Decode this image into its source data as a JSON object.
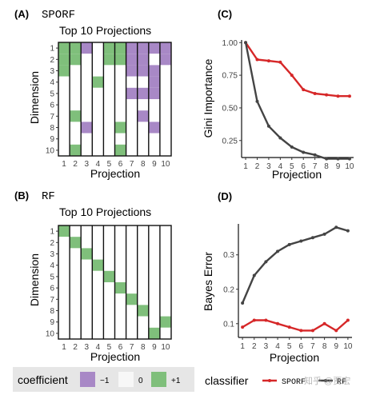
{
  "chart_data": [
    {
      "type": "heatmap",
      "panel_label": "(A)",
      "method_name": "SPORF",
      "title": "Top 10 Projections",
      "xlabel": "Projection",
      "ylabel": "Dimension",
      "x_ticks": [
        "1",
        "2",
        "3",
        "4",
        "5",
        "6",
        "7",
        "8",
        "9",
        "10"
      ],
      "y_ticks": [
        "1",
        "2",
        "3",
        "4",
        "5",
        "6",
        "7",
        "8",
        "9",
        "10"
      ],
      "cells": [
        [
          1,
          1,
          -1,
          0,
          1,
          1,
          -1,
          -1,
          -1,
          -1
        ],
        [
          1,
          1,
          0,
          0,
          1,
          1,
          -1,
          -1,
          0,
          -1
        ],
        [
          1,
          0,
          0,
          0,
          0,
          0,
          -1,
          -1,
          -1,
          0
        ],
        [
          0,
          0,
          0,
          1,
          0,
          0,
          0,
          0,
          -1,
          0
        ],
        [
          0,
          0,
          0,
          0,
          0,
          0,
          -1,
          -1,
          -1,
          0
        ],
        [
          0,
          0,
          0,
          0,
          0,
          0,
          0,
          0,
          0,
          0
        ],
        [
          0,
          1,
          0,
          0,
          0,
          0,
          0,
          -1,
          0,
          0
        ],
        [
          0,
          0,
          -1,
          0,
          0,
          1,
          0,
          0,
          -1,
          0
        ],
        [
          0,
          0,
          0,
          0,
          0,
          0,
          0,
          0,
          0,
          0
        ],
        [
          0,
          1,
          0,
          0,
          0,
          1,
          0,
          0,
          0,
          0
        ]
      ]
    },
    {
      "type": "heatmap",
      "panel_label": "(B)",
      "method_name": "RF",
      "title": "Top 10 Projections",
      "xlabel": "Projection",
      "ylabel": "Dimension",
      "x_ticks": [
        "1",
        "2",
        "3",
        "4",
        "5",
        "6",
        "7",
        "8",
        "9",
        "10"
      ],
      "y_ticks": [
        "1",
        "2",
        "3",
        "4",
        "5",
        "6",
        "7",
        "8",
        "9",
        "10"
      ],
      "cells": [
        [
          1,
          0,
          0,
          0,
          0,
          0,
          0,
          0,
          0,
          0
        ],
        [
          0,
          1,
          0,
          0,
          0,
          0,
          0,
          0,
          0,
          0
        ],
        [
          0,
          0,
          1,
          0,
          0,
          0,
          0,
          0,
          0,
          0
        ],
        [
          0,
          0,
          0,
          1,
          0,
          0,
          0,
          0,
          0,
          0
        ],
        [
          0,
          0,
          0,
          0,
          1,
          0,
          0,
          0,
          0,
          0
        ],
        [
          0,
          0,
          0,
          0,
          0,
          1,
          0,
          0,
          0,
          0
        ],
        [
          0,
          0,
          0,
          0,
          0,
          0,
          1,
          0,
          0,
          0
        ],
        [
          0,
          0,
          0,
          0,
          0,
          0,
          0,
          1,
          0,
          0
        ],
        [
          0,
          0,
          0,
          0,
          0,
          0,
          0,
          0,
          0,
          1
        ],
        [
          0,
          0,
          0,
          0,
          0,
          0,
          0,
          0,
          1,
          0
        ]
      ]
    },
    {
      "type": "line",
      "panel_label": "(C)",
      "xlabel": "Projection",
      "ylabel": "Gini Importance",
      "x": [
        1,
        2,
        3,
        4,
        5,
        6,
        7,
        8,
        9,
        10
      ],
      "ylim": [
        0.12,
        1.02
      ],
      "yticks": [
        0.25,
        0.5,
        0.75,
        1.0
      ],
      "ytick_labels": [
        "0.25",
        "0.50",
        "0.75",
        "1.00"
      ],
      "series": [
        {
          "name": "SPORF",
          "color": "#d62728",
          "values": [
            1.0,
            0.87,
            0.86,
            0.85,
            0.75,
            0.64,
            0.61,
            0.6,
            0.59,
            0.59
          ]
        },
        {
          "name": "RF",
          "color": "#444444",
          "values": [
            1.0,
            0.55,
            0.36,
            0.27,
            0.2,
            0.16,
            0.14,
            0.11,
            0.11,
            0.11
          ]
        }
      ]
    },
    {
      "type": "line",
      "panel_label": "(D)",
      "xlabel": "Projection",
      "ylabel": "Bayes Error",
      "x": [
        1,
        2,
        3,
        4,
        5,
        6,
        7,
        8,
        9,
        10
      ],
      "ylim": [
        0.06,
        0.39
      ],
      "yticks": [
        0.1,
        0.2,
        0.3
      ],
      "ytick_labels": [
        "0.1",
        "0.2",
        "0.3"
      ],
      "series": [
        {
          "name": "SPORF",
          "color": "#d62728",
          "values": [
            0.09,
            0.11,
            0.11,
            0.1,
            0.09,
            0.08,
            0.08,
            0.1,
            0.08,
            0.11
          ]
        },
        {
          "name": "RF",
          "color": "#444444",
          "values": [
            0.16,
            0.24,
            0.28,
            0.31,
            0.33,
            0.34,
            0.35,
            0.36,
            0.38,
            0.37
          ]
        }
      ]
    }
  ],
  "legend": {
    "coefficient_label": "coefficient",
    "entries": [
      {
        "label": "−1",
        "color": "#a888c6"
      },
      {
        "label": "0",
        "color": "#f2f2f2"
      },
      {
        "label": "+1",
        "color": "#7fbf7b"
      }
    ],
    "classifier_label": "classifier",
    "classifier_entries": [
      {
        "label": "SPORF",
        "color": "#d62728"
      },
      {
        "label": "RF",
        "color": "#444444"
      }
    ]
  },
  "watermark": "知乎 @贾宏"
}
